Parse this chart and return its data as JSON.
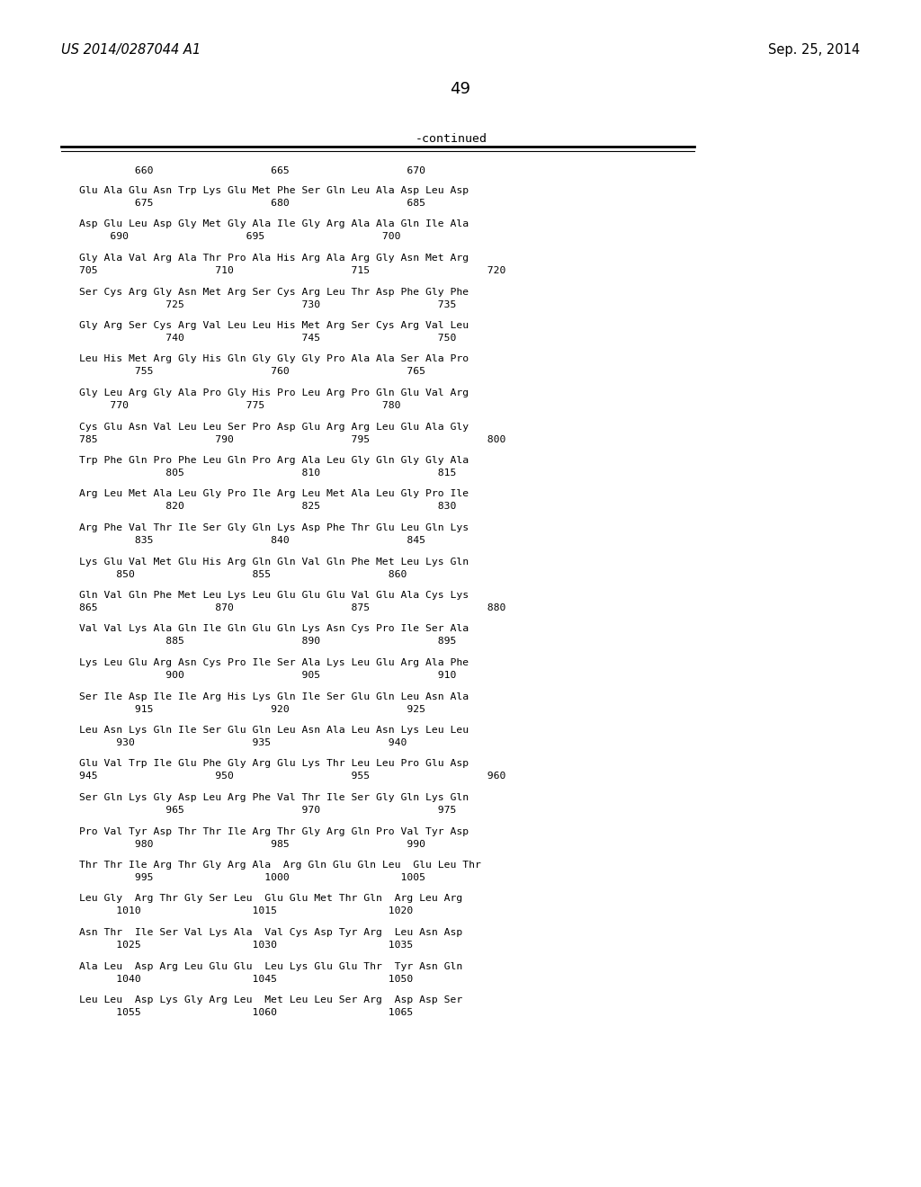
{
  "header_left": "US 2014/0287044 A1",
  "header_right": "Sep. 25, 2014",
  "page_number": "49",
  "continued_label": "-continued",
  "bg": "#ffffff",
  "fg": "#000000",
  "ruler": "         660                   665                   670",
  "rows": [
    [
      "Glu Ala Glu Asn Trp Lys Glu Met Phe Ser Gln Leu Ala Asp Leu Asp",
      "         675                   680                   685"
    ],
    [
      "Asp Glu Leu Asp Gly Met Gly Ala Ile Gly Arg Ala Ala Gln Ile Ala",
      "     690                   695                   700"
    ],
    [
      "Gly Ala Val Arg Ala Thr Pro Ala His Arg Ala Arg Gly Asn Met Arg",
      "705                   710                   715                   720"
    ],
    [
      "Ser Cys Arg Gly Asn Met Arg Ser Cys Arg Leu Thr Asp Phe Gly Phe",
      "              725                   730                   735"
    ],
    [
      "Gly Arg Ser Cys Arg Val Leu Leu His Met Arg Ser Cys Arg Val Leu",
      "              740                   745                   750"
    ],
    [
      "Leu His Met Arg Gly His Gln Gly Gly Gly Pro Ala Ala Ser Ala Pro",
      "         755                   760                   765"
    ],
    [
      "Gly Leu Arg Gly Ala Pro Gly His Pro Leu Arg Pro Gln Glu Val Arg",
      "     770                   775                   780"
    ],
    [
      "Cys Glu Asn Val Leu Leu Ser Pro Asp Glu Arg Arg Leu Glu Ala Gly",
      "785                   790                   795                   800"
    ],
    [
      "Trp Phe Gln Pro Phe Leu Gln Pro Arg Ala Leu Gly Gln Gly Gly Ala",
      "              805                   810                   815"
    ],
    [
      "Arg Leu Met Ala Leu Gly Pro Ile Arg Leu Met Ala Leu Gly Pro Ile",
      "              820                   825                   830"
    ],
    [
      "Arg Phe Val Thr Ile Ser Gly Gln Lys Asp Phe Thr Glu Leu Gln Lys",
      "         835                   840                   845"
    ],
    [
      "Lys Glu Val Met Glu His Arg Gln Gln Val Gln Phe Met Leu Lys Gln",
      "      850                   855                   860"
    ],
    [
      "Gln Val Gln Phe Met Leu Lys Leu Glu Glu Glu Val Glu Ala Cys Lys",
      "865                   870                   875                   880"
    ],
    [
      "Val Val Lys Ala Gln Ile Gln Glu Gln Lys Asn Cys Pro Ile Ser Ala",
      "              885                   890                   895"
    ],
    [
      "Lys Leu Glu Arg Asn Cys Pro Ile Ser Ala Lys Leu Glu Arg Ala Phe",
      "              900                   905                   910"
    ],
    [
      "Ser Ile Asp Ile Ile Arg His Lys Gln Ile Ser Glu Gln Leu Asn Ala",
      "         915                   920                   925"
    ],
    [
      "Leu Asn Lys Gln Ile Ser Glu Gln Leu Asn Ala Leu Asn Lys Leu Leu",
      "      930                   935                   940"
    ],
    [
      "Glu Val Trp Ile Glu Phe Gly Arg Glu Lys Thr Leu Leu Pro Glu Asp",
      "945                   950                   955                   960"
    ],
    [
      "Ser Gln Lys Gly Asp Leu Arg Phe Val Thr Ile Ser Gly Gln Lys Gln",
      "              965                   970                   975"
    ],
    [
      "Pro Val Tyr Asp Thr Thr Ile Arg Thr Gly Arg Gln Pro Val Tyr Asp",
      "         980                   985                   990"
    ],
    [
      "Thr Thr Ile Arg Thr Gly Arg Ala  Arg Gln Glu Gln Leu  Glu Leu Thr",
      "         995                  1000                  1005"
    ],
    [
      "Leu Gly  Arg Thr Gly Ser Leu  Glu Glu Met Thr Gln  Arg Leu Arg",
      "      1010                  1015                  1020"
    ],
    [
      "Asn Thr  Ile Ser Val Lys Ala  Val Cys Asp Tyr Arg  Leu Asn Asp",
      "      1025                  1030                  1035"
    ],
    [
      "Ala Leu  Asp Arg Leu Glu Glu  Leu Lys Glu Glu Thr  Tyr Asn Gln",
      "      1040                  1045                  1050"
    ],
    [
      "Leu Leu  Asp Lys Gly Arg Leu  Met Leu Leu Ser Arg  Asp Asp Ser",
      "      1055                  1060                  1065"
    ]
  ]
}
